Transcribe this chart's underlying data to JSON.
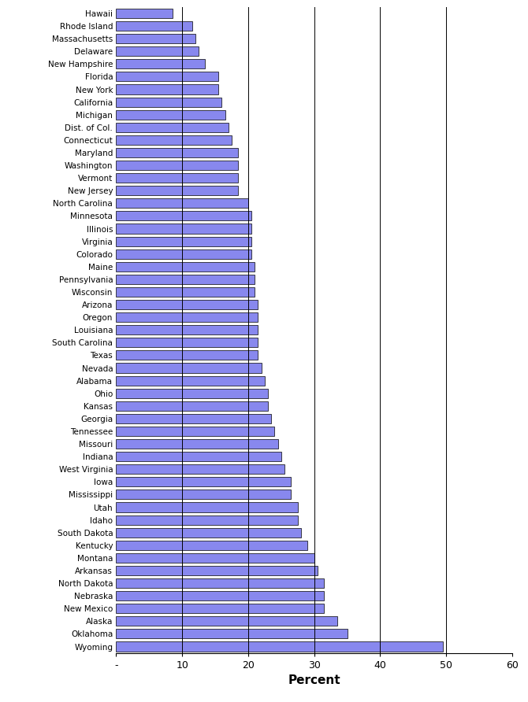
{
  "states": [
    "Hawaii",
    "Rhode Island",
    "Massachusetts",
    "Delaware",
    "New Hampshire",
    "Florida",
    "New York",
    "California",
    "Michigan",
    "Dist. of Col.",
    "Connecticut",
    "Maryland",
    "Washington",
    "Vermont",
    "New Jersey",
    "North Carolina",
    "Minnesota",
    "Illinois",
    "Virginia",
    "Colorado",
    "Maine",
    "Pennsylvania",
    "Wisconsin",
    "Arizona",
    "Oregon",
    "Louisiana",
    "South Carolina",
    "Texas",
    "Nevada",
    "Alabama",
    "Ohio",
    "Kansas",
    "Georgia",
    "Tennessee",
    "Missouri",
    "Indiana",
    "West Virginia",
    "Iowa",
    "Mississippi",
    "Utah",
    "Idaho",
    "South Dakota",
    "Kentucky",
    "Montana",
    "Arkansas",
    "North Dakota",
    "Nebraska",
    "New Mexico",
    "Alaska",
    "Oklahoma",
    "Wyoming"
  ],
  "values": [
    8.5,
    11.5,
    12.0,
    12.5,
    13.5,
    15.5,
    15.5,
    16.0,
    16.5,
    17.0,
    17.5,
    18.5,
    18.5,
    18.5,
    18.5,
    20.0,
    20.5,
    20.5,
    20.5,
    20.5,
    21.0,
    21.0,
    21.0,
    21.5,
    21.5,
    21.5,
    21.5,
    21.5,
    22.0,
    22.5,
    23.0,
    23.0,
    23.5,
    24.0,
    24.5,
    25.0,
    25.5,
    26.5,
    26.5,
    27.5,
    27.5,
    28.0,
    29.0,
    30.0,
    30.5,
    31.5,
    31.5,
    31.5,
    33.5,
    35.0,
    49.5
  ],
  "bar_color": "#8888ee",
  "bar_edgecolor": "#000000",
  "xlabel": "Percent",
  "xlim": [
    0,
    60
  ],
  "xticks": [
    0,
    10,
    20,
    30,
    40,
    50,
    60
  ],
  "xticklabels": [
    "-",
    "10",
    "20",
    "30",
    "40",
    "50",
    "60"
  ],
  "grid_lines": [
    10,
    20,
    30,
    40,
    50
  ],
  "background_color": "#ffffff",
  "bar_height": 0.75,
  "figwidth": 6.7,
  "figheight": 8.92,
  "dpi": 100
}
